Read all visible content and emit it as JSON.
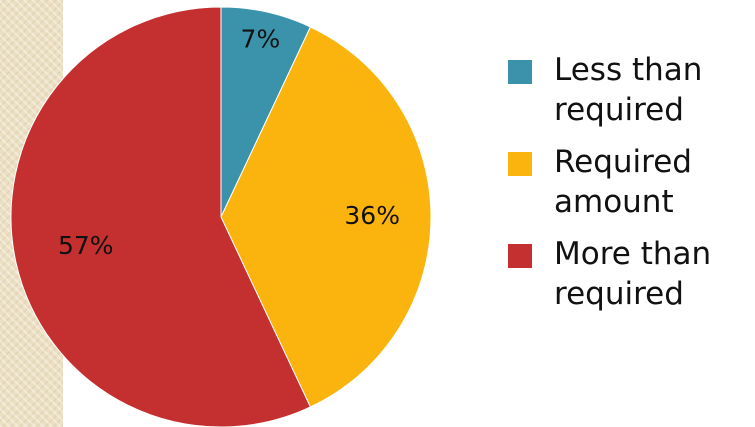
{
  "chart_data": {
    "type": "pie",
    "title": "",
    "categories": [
      "Less than required",
      "Required amount",
      "More than required"
    ],
    "values": [
      7,
      36,
      57
    ],
    "labels": [
      "7%",
      "36%",
      "57%"
    ],
    "colors": [
      "#3a93ab",
      "#fbb40d",
      "#c42f30"
    ],
    "start_angle_deg": 0,
    "direction": "clockwise",
    "legend_position": "right"
  },
  "legend": {
    "items": [
      {
        "label": "Less than required",
        "color": "#3a93ab"
      },
      {
        "label": "Required amount",
        "color": "#fbb40d"
      },
      {
        "label": "More than required",
        "color": "#c42f30"
      }
    ]
  }
}
